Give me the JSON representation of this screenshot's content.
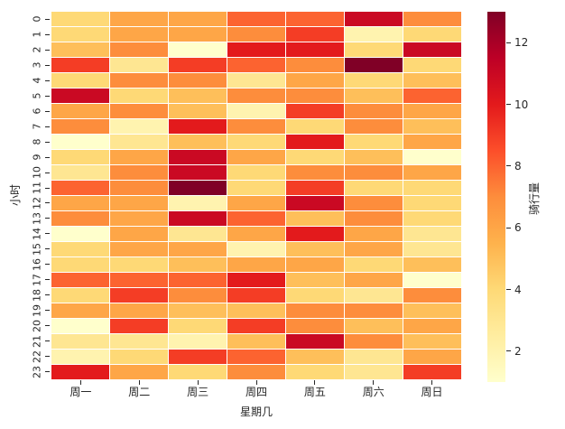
{
  "figure": {
    "background_color": "#ffffff",
    "text_color": "#262626"
  },
  "chart_data": {
    "type": "heatmap",
    "title": "",
    "xlabel": "星期几",
    "ylabel": "小时",
    "x_categories": [
      "周一",
      "周二",
      "周三",
      "周四",
      "周五",
      "周六",
      "周日"
    ],
    "y_categories": [
      "0",
      "1",
      "2",
      "3",
      "4",
      "5",
      "6",
      "7",
      "8",
      "9",
      "10",
      "11",
      "12",
      "13",
      "14",
      "15",
      "16",
      "17",
      "18",
      "19",
      "20",
      "21",
      "22",
      "23"
    ],
    "values": [
      [
        4,
        6,
        6,
        8,
        8,
        11,
        7
      ],
      [
        4,
        6,
        6,
        7,
        9,
        2,
        4
      ],
      [
        5,
        7,
        1,
        10,
        10,
        4,
        11
      ],
      [
        9,
        3,
        9,
        8,
        7,
        13,
        4
      ],
      [
        4,
        7,
        7,
        3,
        6,
        4,
        5
      ],
      [
        11,
        4,
        5,
        7,
        7,
        5,
        8
      ],
      [
        6,
        7,
        5,
        2,
        9,
        7,
        6
      ],
      [
        7,
        2,
        10,
        7,
        4,
        7,
        5
      ],
      [
        1,
        3,
        5,
        4,
        10,
        4,
        6
      ],
      [
        4,
        6,
        11,
        6,
        4,
        5,
        1
      ],
      [
        3,
        7,
        11,
        4,
        7,
        7,
        6
      ],
      [
        8,
        7,
        13,
        4,
        9,
        4,
        4
      ],
      [
        6,
        6,
        2,
        6,
        11,
        7,
        4
      ],
      [
        7,
        6,
        11,
        8,
        5,
        7,
        4
      ],
      [
        1,
        6,
        3,
        6,
        10,
        6,
        3
      ],
      [
        4,
        6,
        6,
        2,
        5,
        6,
        3
      ],
      [
        4,
        4,
        5,
        6,
        6,
        4,
        5
      ],
      [
        8,
        8,
        8,
        10,
        5,
        6,
        1
      ],
      [
        4,
        9,
        7,
        9,
        4,
        3,
        7
      ],
      [
        6,
        6,
        5,
        5,
        7,
        7,
        5
      ],
      [
        1,
        9,
        4,
        9,
        7,
        5,
        6
      ],
      [
        3,
        3,
        2,
        5,
        11,
        7,
        5
      ],
      [
        2,
        4,
        9,
        8,
        5,
        3,
        6
      ],
      [
        10,
        6,
        4,
        7,
        4,
        3,
        9
      ]
    ],
    "vmin": 1,
    "vmax": 13,
    "colormap": "YlOrRd",
    "value_palette": [
      "#ffffcc",
      "#fff3af",
      "#fee692",
      "#fed976",
      "#febf5a",
      "#fea647",
      "#fd8d3c",
      "#fc6330",
      "#f43d25",
      "#e31a1c",
      "#ca0923",
      "#a90026",
      "#800026"
    ],
    "grid_line_color": "#ffffff",
    "colorbar": {
      "label": "骑行量",
      "ticks": [
        2,
        4,
        6,
        8,
        10,
        12
      ],
      "gradient_stops": [
        "#ffffcc",
        "#ffeda0",
        "#fed976",
        "#feb24c",
        "#fd8d3c",
        "#fc4e2a",
        "#e31a1c",
        "#bd0026",
        "#800026"
      ]
    },
    "legend_position": "right-colorbar",
    "grid": false
  }
}
